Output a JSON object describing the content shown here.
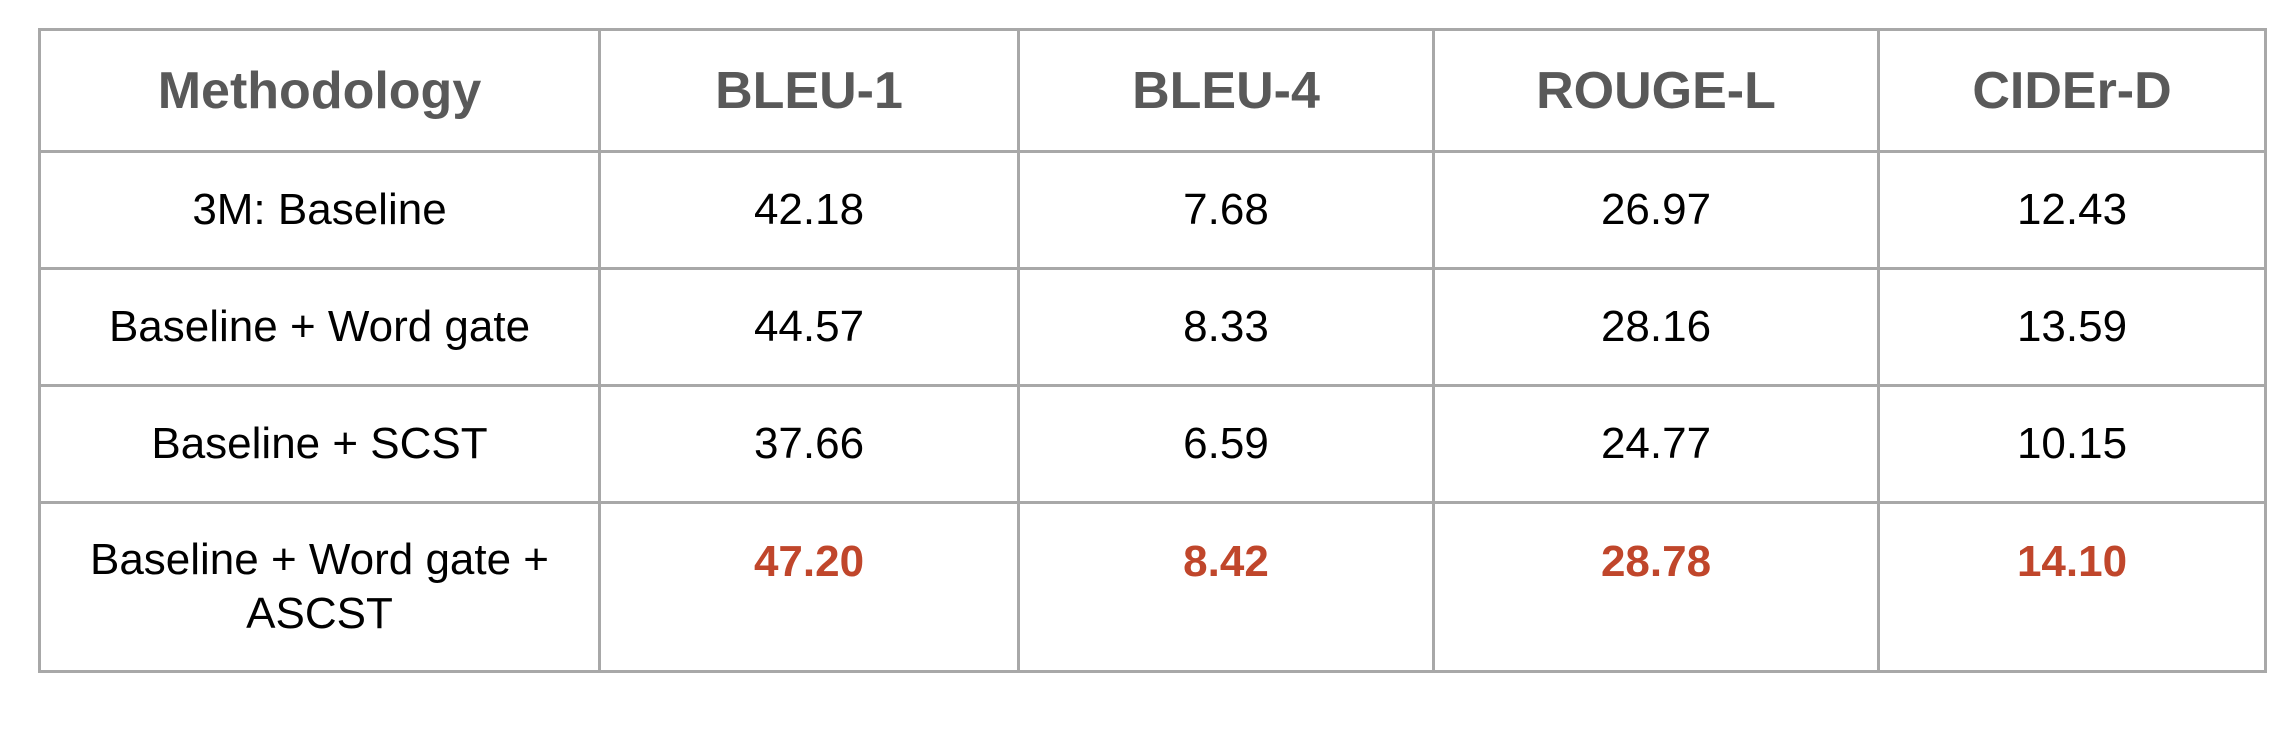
{
  "table": {
    "headers": [
      "Methodology",
      "BLEU-1",
      "BLEU-4",
      "ROUGE-L",
      "CIDEr-D"
    ],
    "rows": [
      [
        "3M: Baseline",
        "42.18",
        "7.68",
        "26.97",
        "12.43"
      ],
      [
        "Baseline + Word gate",
        "44.57",
        "8.33",
        "28.16",
        "13.59"
      ],
      [
        "Baseline + SCST",
        "37.66",
        "6.59",
        "24.77",
        "10.15"
      ],
      [
        "Baseline + Word gate + ASCST",
        "47.20",
        "8.42",
        "28.78",
        "14.10"
      ]
    ]
  },
  "colors": {
    "header_text": "#595959",
    "highlight": "#c0462b",
    "border": "#a8a8a8"
  }
}
